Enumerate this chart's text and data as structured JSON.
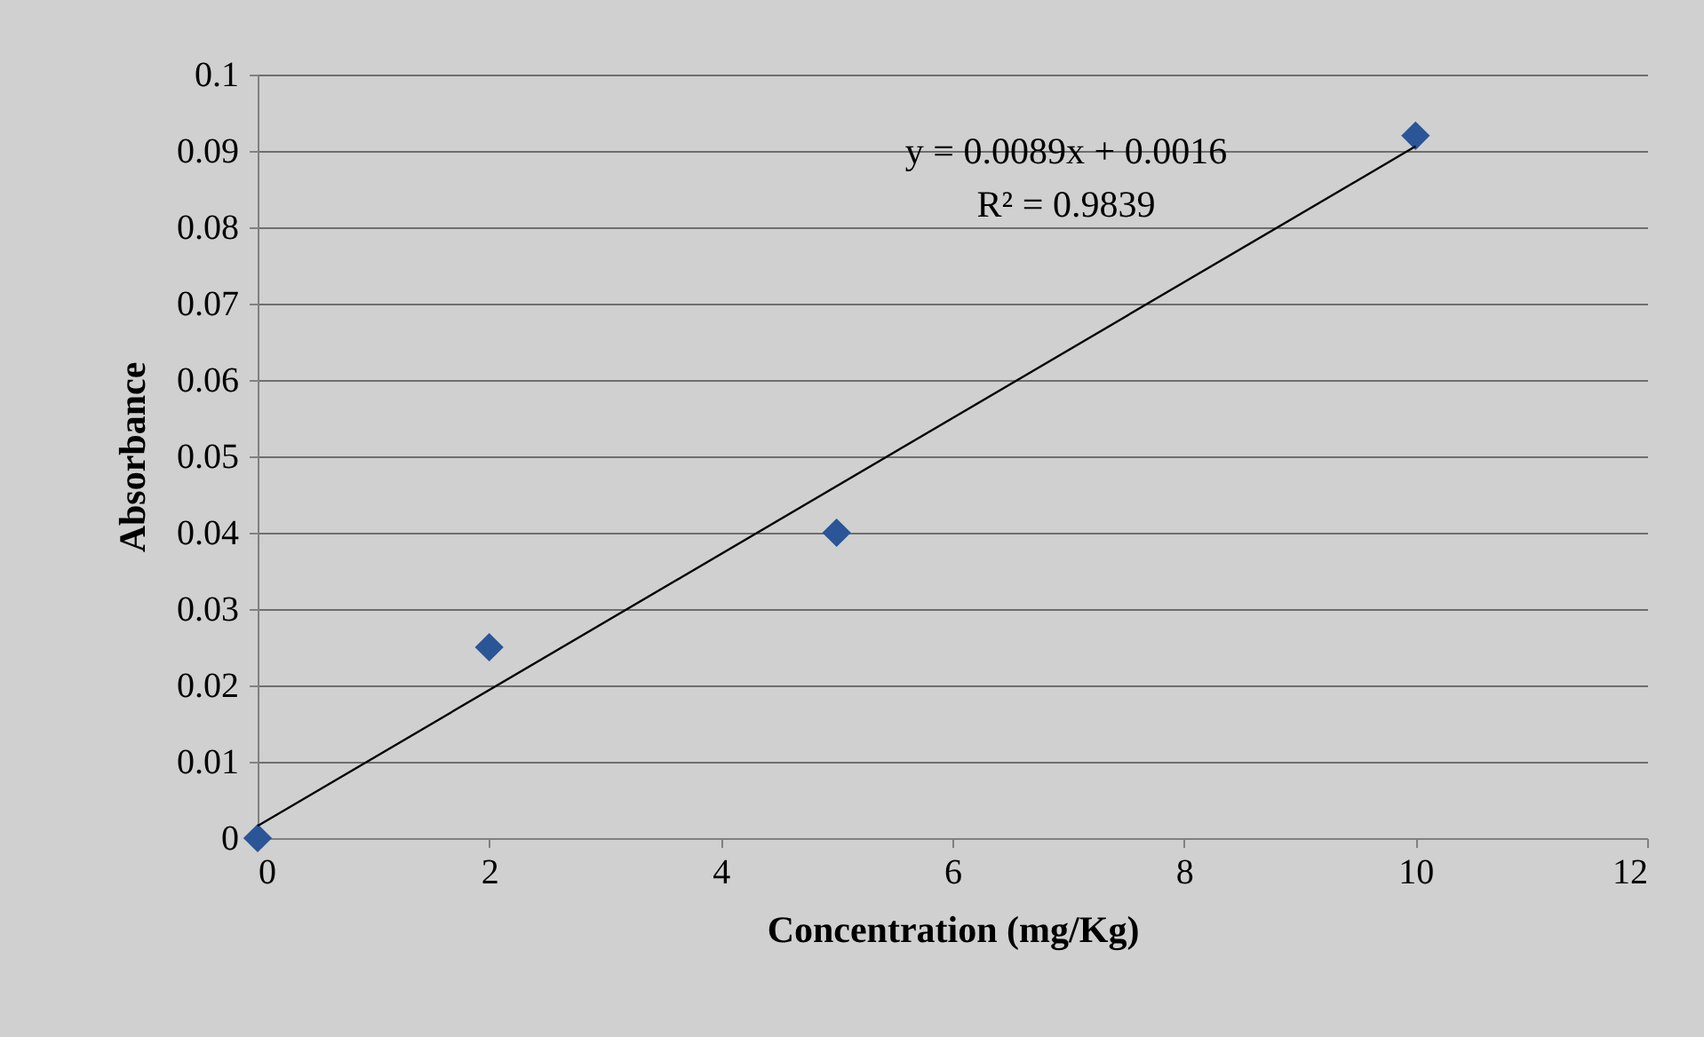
{
  "chart_data": {
    "type": "scatter",
    "xlabel": "Concentration (mg/Kg)",
    "ylabel": "Absorbance",
    "series": [
      {
        "color": "#2a5596",
        "marker": "diamond",
        "x": [
          0,
          2,
          5,
          10
        ],
        "values": [
          0,
          0.025,
          0.04,
          0.092
        ]
      },
      {
        "type": "line",
        "marker": "none",
        "color": "#000000",
        "x": [
          0,
          10
        ],
        "values": [
          0.0016,
          0.0906
        ]
      }
    ],
    "annotations": [
      "y = 0.0089x + 0.0016",
      "R² = 0.9839"
    ],
    "xlim": [
      0,
      12
    ],
    "xticks": [
      0,
      2,
      4,
      6,
      8,
      10,
      12
    ],
    "ylim": [
      0,
      0.1
    ],
    "yticks": [
      0,
      0.01,
      0.02,
      0.03,
      0.04,
      0.05,
      0.06,
      0.07,
      0.08,
      0.09,
      0.1
    ],
    "grid": "y",
    "line_style": "solid"
  }
}
